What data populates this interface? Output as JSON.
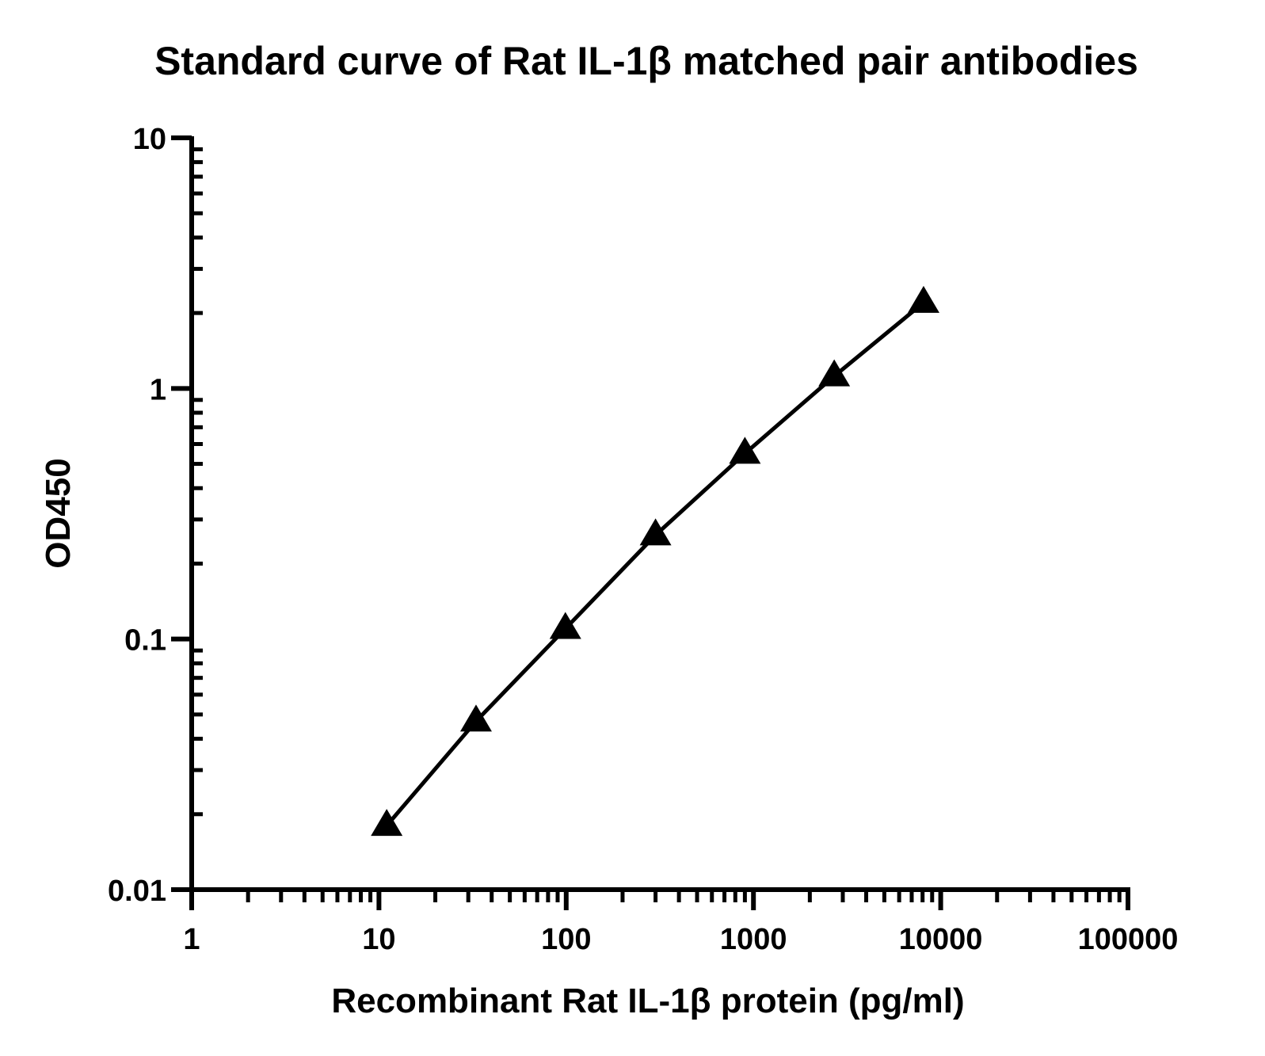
{
  "chart_data": {
    "type": "line",
    "title": "Standard curve of Rat IL-1β matched pair antibodies",
    "xlabel": "Recombinant Rat IL-1β protein (pg/ml)",
    "ylabel": "OD450",
    "x_scale": "log",
    "y_scale": "log",
    "xlim": [
      1,
      100000
    ],
    "ylim": [
      0.01,
      10
    ],
    "x_ticks": [
      "1",
      "10",
      "100",
      "1000",
      "10000",
      "100000"
    ],
    "y_ticks": [
      "0.01",
      "0.1",
      "1",
      "10"
    ],
    "grid": false,
    "marker": "triangle",
    "color": "#000000",
    "series": [
      {
        "x": [
          11,
          33,
          99,
          300,
          900,
          2700,
          8100
        ],
        "y": [
          0.018,
          0.047,
          0.11,
          0.26,
          0.55,
          1.12,
          2.2
        ]
      }
    ]
  }
}
